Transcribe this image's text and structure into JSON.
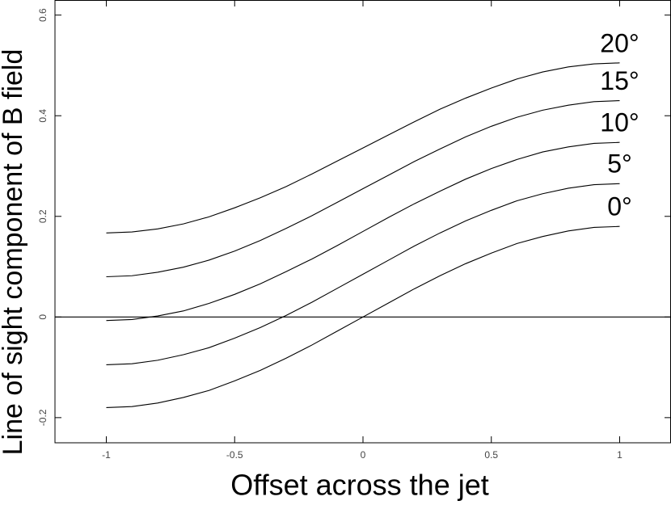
{
  "chart_data": {
    "type": "line",
    "xlabel": "Offset across the jet",
    "ylabel": "Line of sight component of B field",
    "x": [
      -1,
      -0.9,
      -0.8,
      -0.7,
      -0.6,
      -0.5,
      -0.4,
      -0.3,
      -0.2,
      -0.1,
      0,
      0.1,
      0.2,
      0.3,
      0.4,
      0.5,
      0.6,
      0.7,
      0.8,
      0.9,
      1
    ],
    "series": [
      {
        "name": "0°",
        "color": "#000000",
        "values": [
          -0.18,
          -0.178,
          -0.171,
          -0.16,
          -0.146,
          -0.127,
          -0.106,
          -0.082,
          -0.056,
          -0.028,
          0,
          0.028,
          0.056,
          0.082,
          0.106,
          0.127,
          0.146,
          0.16,
          0.171,
          0.178,
          0.18
        ]
      },
      {
        "name": "5°",
        "color": "#000000",
        "values": [
          -0.095,
          -0.093,
          -0.086,
          -0.075,
          -0.061,
          -0.042,
          -0.021,
          0.003,
          0.029,
          0.057,
          0.085,
          0.113,
          0.141,
          0.167,
          0.191,
          0.212,
          0.231,
          0.245,
          0.256,
          0.263,
          0.265
        ]
      },
      {
        "name": "10°",
        "color": "#000000",
        "values": [
          -0.007,
          -0.005,
          0.002,
          0.012,
          0.027,
          0.045,
          0.066,
          0.09,
          0.115,
          0.142,
          0.17,
          0.198,
          0.225,
          0.25,
          0.274,
          0.295,
          0.313,
          0.328,
          0.338,
          0.345,
          0.347
        ]
      },
      {
        "name": "15°",
        "color": "#000000",
        "values": [
          0.08,
          0.082,
          0.089,
          0.099,
          0.113,
          0.131,
          0.152,
          0.176,
          0.201,
          0.228,
          0.255,
          0.282,
          0.309,
          0.334,
          0.358,
          0.379,
          0.397,
          0.411,
          0.421,
          0.428,
          0.43
        ]
      },
      {
        "name": "20°",
        "color": "#000000",
        "values": [
          0.167,
          0.169,
          0.175,
          0.185,
          0.199,
          0.217,
          0.237,
          0.259,
          0.284,
          0.31,
          0.336,
          0.362,
          0.388,
          0.413,
          0.435,
          0.455,
          0.473,
          0.487,
          0.497,
          0.503,
          0.505
        ]
      }
    ],
    "xlim": [
      -1.2,
      1.2
    ],
    "xticks": [
      -1,
      -0.5,
      0,
      0.5,
      1
    ],
    "ylim": [
      -0.25,
      0.63
    ],
    "yticks": [
      -0.2,
      0,
      0.2,
      0.4,
      0.6
    ],
    "zero_line": true,
    "grid": false
  }
}
